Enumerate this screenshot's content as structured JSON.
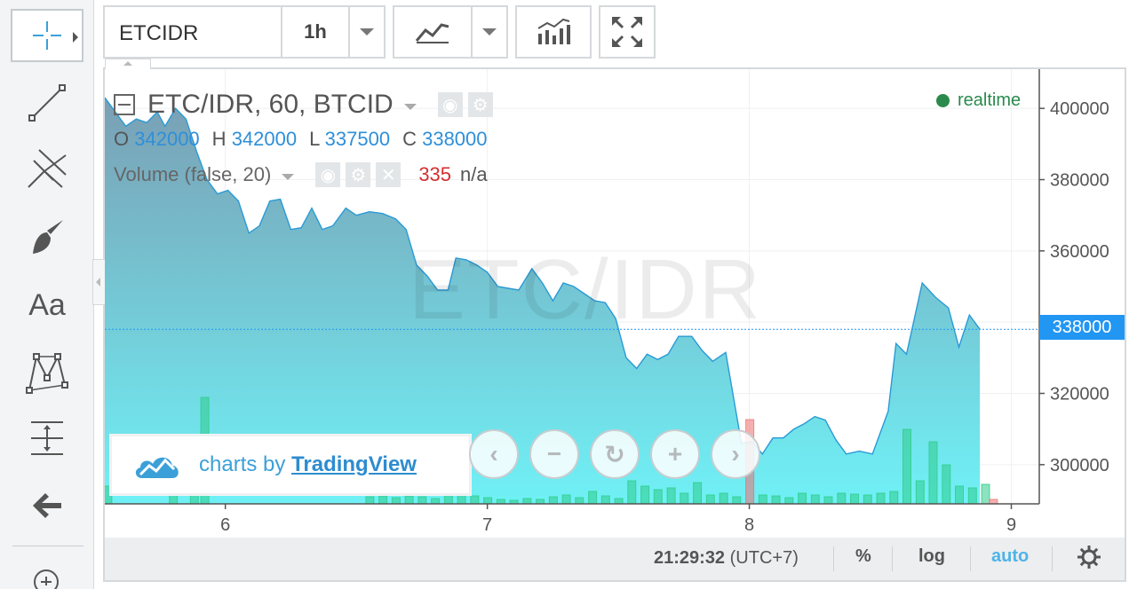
{
  "header": {
    "symbol": "ETCIDR",
    "interval": "1h"
  },
  "legend": {
    "title": "ETC/IDR, 60, BTCID",
    "ohlc": [
      {
        "key": "O",
        "value": "342000"
      },
      {
        "key": "H",
        "value": "342000"
      },
      {
        "key": "L",
        "value": "337500"
      },
      {
        "key": "C",
        "value": "338000"
      }
    ],
    "volume_label": "Volume (false, 20)",
    "volume_value": "335",
    "volume_na": "n/a",
    "realtime": "realtime"
  },
  "watermark": "ETC/IDR",
  "last_price": "338000",
  "badge": {
    "prefix": "charts by ",
    "link": "TradingView"
  },
  "bottom_bar": {
    "time": "21:29:32",
    "timezone": "(UTC+7)",
    "percent": "%",
    "log": "log",
    "auto": "auto"
  },
  "toolbar": {
    "text_tool": "Aa"
  },
  "colors": {
    "line": "#2a9ad6",
    "area_top": "#7a9fb4",
    "area_bottom": "#6ff1f6",
    "vol_up": "#2ecc8a",
    "vol_down": "#f07070",
    "accent": "#2196f3"
  },
  "chart_data": {
    "type": "area",
    "symbol": "ETC/IDR",
    "yaxis_ticks": [
      300000,
      320000,
      340000,
      360000,
      380000,
      400000
    ],
    "yaxis_labels": [
      "300000",
      "320000",
      "",
      "360000",
      "380000",
      "400000"
    ],
    "ylim": [
      289000,
      411000
    ],
    "xaxis_ticks": [
      6,
      7,
      8,
      9
    ],
    "xaxis_labels": [
      "6",
      "7",
      "8",
      "9"
    ],
    "xlim": [
      5.54,
      9.1
    ],
    "price_series": [
      {
        "x": 5.54,
        "y": 403000
      },
      {
        "x": 5.58,
        "y": 399000
      },
      {
        "x": 5.62,
        "y": 395000
      },
      {
        "x": 5.66,
        "y": 397000
      },
      {
        "x": 5.7,
        "y": 396000
      },
      {
        "x": 5.74,
        "y": 399000
      },
      {
        "x": 5.77,
        "y": 395000
      },
      {
        "x": 5.81,
        "y": 400000
      },
      {
        "x": 5.85,
        "y": 397000
      },
      {
        "x": 5.89,
        "y": 388000
      },
      {
        "x": 5.93,
        "y": 380000
      },
      {
        "x": 5.97,
        "y": 376000
      },
      {
        "x": 6.01,
        "y": 377000
      },
      {
        "x": 6.05,
        "y": 374000
      },
      {
        "x": 6.09,
        "y": 365000
      },
      {
        "x": 6.13,
        "y": 367000
      },
      {
        "x": 6.17,
        "y": 374000
      },
      {
        "x": 6.21,
        "y": 374500
      },
      {
        "x": 6.25,
        "y": 366000
      },
      {
        "x": 6.29,
        "y": 366500
      },
      {
        "x": 6.33,
        "y": 372000
      },
      {
        "x": 6.37,
        "y": 366000
      },
      {
        "x": 6.41,
        "y": 367000
      },
      {
        "x": 6.46,
        "y": 372000
      },
      {
        "x": 6.5,
        "y": 370000
      },
      {
        "x": 6.55,
        "y": 371000
      },
      {
        "x": 6.6,
        "y": 370500
      },
      {
        "x": 6.65,
        "y": 369000
      },
      {
        "x": 6.69,
        "y": 366000
      },
      {
        "x": 6.73,
        "y": 356000
      },
      {
        "x": 6.77,
        "y": 353000
      },
      {
        "x": 6.81,
        "y": 349000
      },
      {
        "x": 6.85,
        "y": 349000
      },
      {
        "x": 6.88,
        "y": 358000
      },
      {
        "x": 6.92,
        "y": 357500
      },
      {
        "x": 6.96,
        "y": 356000
      },
      {
        "x": 7.0,
        "y": 354000
      },
      {
        "x": 7.04,
        "y": 350000
      },
      {
        "x": 7.08,
        "y": 349500
      },
      {
        "x": 7.12,
        "y": 349000
      },
      {
        "x": 7.17,
        "y": 355000
      },
      {
        "x": 7.21,
        "y": 351000
      },
      {
        "x": 7.25,
        "y": 346000
      },
      {
        "x": 7.29,
        "y": 351000
      },
      {
        "x": 7.33,
        "y": 350000
      },
      {
        "x": 7.37,
        "y": 348000
      },
      {
        "x": 7.41,
        "y": 346000
      },
      {
        "x": 7.45,
        "y": 345500
      },
      {
        "x": 7.49,
        "y": 341000
      },
      {
        "x": 7.53,
        "y": 330000
      },
      {
        "x": 7.57,
        "y": 327000
      },
      {
        "x": 7.61,
        "y": 331000
      },
      {
        "x": 7.65,
        "y": 329500
      },
      {
        "x": 7.69,
        "y": 331000
      },
      {
        "x": 7.73,
        "y": 336000
      },
      {
        "x": 7.78,
        "y": 336000
      },
      {
        "x": 7.82,
        "y": 332000
      },
      {
        "x": 7.86,
        "y": 329000
      },
      {
        "x": 7.91,
        "y": 331500
      },
      {
        "x": 7.97,
        "y": 306000
      },
      {
        "x": 8.01,
        "y": 306500
      },
      {
        "x": 8.05,
        "y": 303000
      },
      {
        "x": 8.09,
        "y": 307500
      },
      {
        "x": 8.13,
        "y": 307500
      },
      {
        "x": 8.17,
        "y": 310000
      },
      {
        "x": 8.21,
        "y": 311500
      },
      {
        "x": 8.25,
        "y": 313500
      },
      {
        "x": 8.29,
        "y": 312500
      },
      {
        "x": 8.33,
        "y": 307000
      },
      {
        "x": 8.37,
        "y": 303000
      },
      {
        "x": 8.42,
        "y": 303800
      },
      {
        "x": 8.47,
        "y": 303000
      },
      {
        "x": 8.53,
        "y": 315000
      },
      {
        "x": 8.56,
        "y": 334000
      },
      {
        "x": 8.6,
        "y": 331000
      },
      {
        "x": 8.66,
        "y": 351000
      },
      {
        "x": 8.71,
        "y": 347000
      },
      {
        "x": 8.76,
        "y": 344000
      },
      {
        "x": 8.8,
        "y": 333000
      },
      {
        "x": 8.84,
        "y": 342000
      },
      {
        "x": 8.88,
        "y": 338000
      }
    ],
    "volume_series": [
      {
        "x": 5.55,
        "v": 20,
        "dir": "up"
      },
      {
        "x": 5.8,
        "v": 60,
        "dir": "up"
      },
      {
        "x": 5.88,
        "v": 70,
        "dir": "up"
      },
      {
        "x": 5.92,
        "v": 120,
        "dir": "up"
      },
      {
        "x": 6.55,
        "v": 8,
        "dir": "up"
      },
      {
        "x": 6.6,
        "v": 9,
        "dir": "up"
      },
      {
        "x": 6.65,
        "v": 7,
        "dir": "up"
      },
      {
        "x": 6.7,
        "v": 9,
        "dir": "up"
      },
      {
        "x": 6.75,
        "v": 8,
        "dir": "up"
      },
      {
        "x": 6.8,
        "v": 6,
        "dir": "up"
      },
      {
        "x": 6.85,
        "v": 10,
        "dir": "up"
      },
      {
        "x": 6.9,
        "v": 14,
        "dir": "up"
      },
      {
        "x": 6.95,
        "v": 9,
        "dir": "up"
      },
      {
        "x": 7.0,
        "v": 7,
        "dir": "up"
      },
      {
        "x": 7.05,
        "v": 5,
        "dir": "up"
      },
      {
        "x": 7.1,
        "v": 4,
        "dir": "up"
      },
      {
        "x": 7.15,
        "v": 6,
        "dir": "up"
      },
      {
        "x": 7.2,
        "v": 5,
        "dir": "up"
      },
      {
        "x": 7.25,
        "v": 8,
        "dir": "up"
      },
      {
        "x": 7.3,
        "v": 10,
        "dir": "up"
      },
      {
        "x": 7.35,
        "v": 7,
        "dir": "up"
      },
      {
        "x": 7.4,
        "v": 14,
        "dir": "up"
      },
      {
        "x": 7.45,
        "v": 9,
        "dir": "up"
      },
      {
        "x": 7.5,
        "v": 6,
        "dir": "up"
      },
      {
        "x": 7.55,
        "v": 26,
        "dir": "up"
      },
      {
        "x": 7.6,
        "v": 20,
        "dir": "up"
      },
      {
        "x": 7.65,
        "v": 16,
        "dir": "up"
      },
      {
        "x": 7.7,
        "v": 18,
        "dir": "up"
      },
      {
        "x": 7.75,
        "v": 12,
        "dir": "up"
      },
      {
        "x": 7.8,
        "v": 24,
        "dir": "up"
      },
      {
        "x": 7.85,
        "v": 10,
        "dir": "up"
      },
      {
        "x": 7.9,
        "v": 12,
        "dir": "up"
      },
      {
        "x": 7.95,
        "v": 8,
        "dir": "up"
      },
      {
        "x": 8.0,
        "v": 95,
        "dir": "down"
      },
      {
        "x": 8.05,
        "v": 10,
        "dir": "up"
      },
      {
        "x": 8.1,
        "v": 9,
        "dir": "up"
      },
      {
        "x": 8.15,
        "v": 7,
        "dir": "up"
      },
      {
        "x": 8.2,
        "v": 12,
        "dir": "up"
      },
      {
        "x": 8.25,
        "v": 10,
        "dir": "up"
      },
      {
        "x": 8.3,
        "v": 8,
        "dir": "up"
      },
      {
        "x": 8.35,
        "v": 12,
        "dir": "up"
      },
      {
        "x": 8.4,
        "v": 11,
        "dir": "up"
      },
      {
        "x": 8.45,
        "v": 10,
        "dir": "up"
      },
      {
        "x": 8.5,
        "v": 12,
        "dir": "up"
      },
      {
        "x": 8.55,
        "v": 14,
        "dir": "up"
      },
      {
        "x": 8.6,
        "v": 84,
        "dir": "up"
      },
      {
        "x": 8.65,
        "v": 26,
        "dir": "up"
      },
      {
        "x": 8.7,
        "v": 70,
        "dir": "up"
      },
      {
        "x": 8.75,
        "v": 44,
        "dir": "up"
      },
      {
        "x": 8.8,
        "v": 20,
        "dir": "up"
      },
      {
        "x": 8.85,
        "v": 18,
        "dir": "up"
      },
      {
        "x": 8.9,
        "v": 22,
        "dir": "up"
      },
      {
        "x": 8.93,
        "v": 5,
        "dir": "down"
      }
    ]
  }
}
